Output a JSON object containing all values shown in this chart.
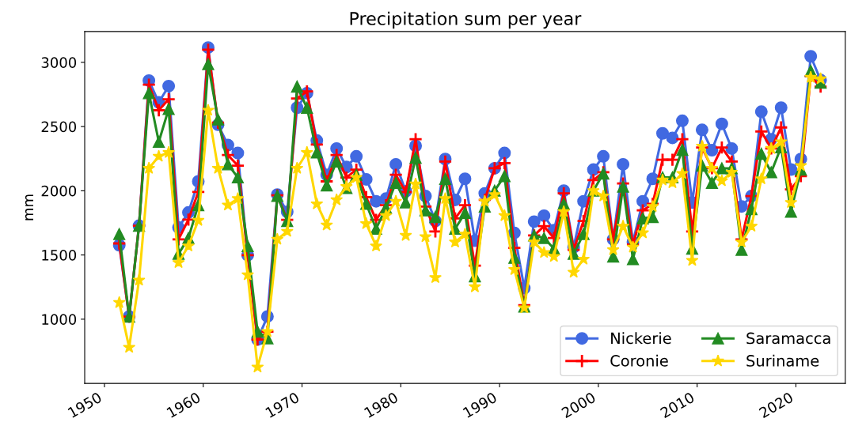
{
  "chart_data": {
    "type": "line",
    "title": "Precipitation sum per year",
    "ylabel": "mm",
    "x": [
      1951.5,
      1952.5,
      1953.5,
      1954.5,
      1955.5,
      1956.5,
      1957.5,
      1958.5,
      1959.5,
      1960.5,
      1961.5,
      1962.5,
      1963.5,
      1964.5,
      1965.5,
      1966.5,
      1967.5,
      1968.5,
      1969.5,
      1970.5,
      1971.5,
      1972.5,
      1973.5,
      1974.5,
      1975.5,
      1976.5,
      1977.5,
      1978.5,
      1979.5,
      1980.5,
      1981.5,
      1982.5,
      1983.5,
      1984.5,
      1985.5,
      1986.5,
      1987.5,
      1988.5,
      1989.5,
      1990.5,
      1991.5,
      1992.5,
      1993.5,
      1994.5,
      1995.5,
      1996.5,
      1997.5,
      1998.5,
      1999.5,
      2000.5,
      2001.5,
      2002.5,
      2003.5,
      2004.5,
      2005.5,
      2006.5,
      2007.5,
      2008.5,
      2009.5,
      2010.5,
      2011.5,
      2012.5,
      2013.5,
      2014.5,
      2015.5,
      2016.5,
      2017.5,
      2018.5,
      2019.5,
      2020.5,
      2021.5,
      2022.5
    ],
    "series": [
      {
        "name": "Nickerie",
        "color": "#4169e1",
        "marker": "circle",
        "values": [
          1576,
          1021,
          1728,
          2858,
          2688,
          2815,
          1714,
          1831,
          2073,
          3115,
          2514,
          2356,
          2294,
          1498,
          842,
          1021,
          1970,
          1836,
          2647,
          2760,
          2391,
          2124,
          2329,
          2185,
          2268,
          2089,
          1918,
          1939,
          2206,
          1996,
          2350,
          1959,
          1765,
          2247,
          1929,
          2093,
          1611,
          1980,
          2175,
          2294,
          1672,
          1242,
          1760,
          1806,
          1693,
          2001,
          1560,
          1918,
          2165,
          2268,
          1622,
          2206,
          1601,
          1918,
          2093,
          2447,
          2412,
          2545,
          1908,
          2474,
          2316,
          2521,
          2329,
          1878,
          1959,
          2616,
          2401,
          2647,
          2165,
          2247,
          3047,
          2862
        ]
      },
      {
        "name": "Coronie",
        "color": "#ff0000",
        "marker": "plus",
        "values": [
          1590,
          1020,
          1728,
          2826,
          2627,
          2713,
          1622,
          1775,
          1991,
          3098,
          2530,
          2278,
          2196,
          1498,
          842,
          903,
          1965,
          1774,
          2718,
          2774,
          2360,
          2073,
          2278,
          2103,
          2165,
          1950,
          1774,
          1888,
          2124,
          1990,
          2401,
          1877,
          1683,
          2227,
          1785,
          1888,
          1417,
          1929,
          2175,
          2216,
          1556,
          1109,
          1652,
          1724,
          1632,
          1980,
          1540,
          1765,
          2083,
          2144,
          1622,
          2057,
          1581,
          1847,
          1898,
          2242,
          2242,
          2401,
          1683,
          2337,
          2175,
          2337,
          2227,
          1622,
          1959,
          2462,
          2329,
          2493,
          2011,
          2114,
          2893,
          2811
        ]
      },
      {
        "name": "Saramacca",
        "color": "#228b22",
        "marker": "triangle",
        "values": [
          1663,
          1020,
          1728,
          2760,
          2381,
          2637,
          1509,
          1632,
          1888,
          2986,
          2555,
          2206,
          2104,
          1570,
          903,
          851,
          1960,
          1765,
          2811,
          2647,
          2298,
          2042,
          2227,
          2021,
          2124,
          1898,
          1704,
          1868,
          2062,
          1909,
          2257,
          1847,
          1796,
          2093,
          1704,
          1827,
          1334,
          1877,
          2001,
          2114,
          1478,
          1098,
          1652,
          1632,
          1550,
          1898,
          1509,
          1663,
          2001,
          2134,
          1488,
          2032,
          1467,
          1785,
          1796,
          2104,
          2104,
          2319,
          1550,
          2196,
          2062,
          2175,
          2175,
          1540,
          1857,
          2288,
          2144,
          2339,
          1837,
          2165,
          2934,
          2842
        ]
      },
      {
        "name": "Suriname",
        "color": "#ffd700",
        "marker": "star",
        "values": [
          1129,
          781,
          1304,
          2175,
          2268,
          2298,
          1441,
          1570,
          1769,
          2627,
          2175,
          1888,
          1939,
          1345,
          627,
          903,
          1622,
          1683,
          2175,
          2298,
          1898,
          1733,
          1929,
          2032,
          2103,
          1744,
          1570,
          1806,
          1918,
          1652,
          2052,
          1642,
          1324,
          1939,
          1601,
          1662,
          1252,
          1918,
          1970,
          1806,
          1386,
          1088,
          1601,
          1519,
          1488,
          1837,
          1365,
          1467,
          2001,
          1959,
          1540,
          1724,
          1560,
          1672,
          1877,
          2083,
          2062,
          2134,
          1457,
          2347,
          2175,
          2077,
          2144,
          1601,
          1724,
          2093,
          2329,
          2380,
          1908,
          2196,
          2883,
          2872
        ]
      }
    ],
    "xlim": [
      1948,
      2025
    ],
    "xticks": [
      1950,
      1960,
      1970,
      1980,
      1990,
      2000,
      2010,
      2020
    ],
    "ylim": [
      500,
      3240
    ],
    "yticks": [
      1000,
      1500,
      2000,
      2500,
      3000
    ],
    "grid": false,
    "legend": "bottom right",
    "line_style": "solid"
  }
}
